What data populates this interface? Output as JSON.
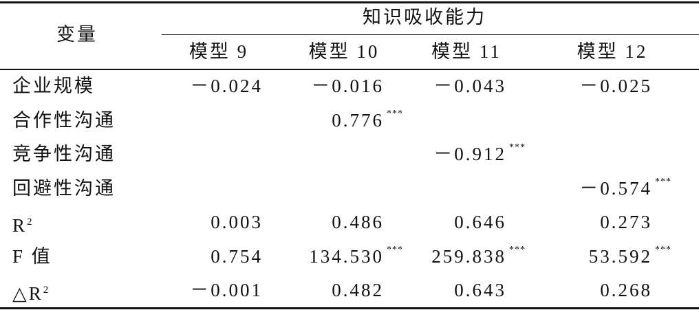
{
  "header": {
    "variable": "变量",
    "group": "知识吸收能力",
    "models": [
      "模型 9",
      "模型 10",
      "模型 11",
      "模型 12"
    ]
  },
  "table": {
    "rows": [
      {
        "label": "企业规模",
        "cells": [
          {
            "value": "－0.024"
          },
          {
            "value": "－0.016"
          },
          {
            "value": "－0.043"
          },
          {
            "value": "－0.025"
          }
        ]
      },
      {
        "label": "合作性沟通",
        "cells": [
          null,
          {
            "value": "0.776",
            "sig": "***"
          },
          null,
          null
        ]
      },
      {
        "label": "竞争性沟通",
        "cells": [
          null,
          null,
          {
            "value": "－0.912",
            "sig": "***"
          },
          null
        ]
      },
      {
        "label": "回避性沟通",
        "cells": [
          null,
          null,
          null,
          {
            "value": "－0.574",
            "sig": "***"
          }
        ]
      },
      {
        "label": "R",
        "label_sup": "2",
        "cells": [
          {
            "value": "0.003"
          },
          {
            "value": "0.486"
          },
          {
            "value": "0.646"
          },
          {
            "value": "0.273"
          }
        ]
      },
      {
        "label": "F 值",
        "cells": [
          {
            "value": "0.754"
          },
          {
            "value": "134.530",
            "sig": "***"
          },
          {
            "value": "259.838",
            "sig": "***"
          },
          {
            "value": "53.592",
            "sig": "***"
          }
        ]
      },
      {
        "label": "△R",
        "label_sup": "2",
        "cells": [
          {
            "value": "－0.001"
          },
          {
            "value": "0.482"
          },
          {
            "value": "0.643"
          },
          {
            "value": "0.268"
          }
        ]
      }
    ]
  }
}
